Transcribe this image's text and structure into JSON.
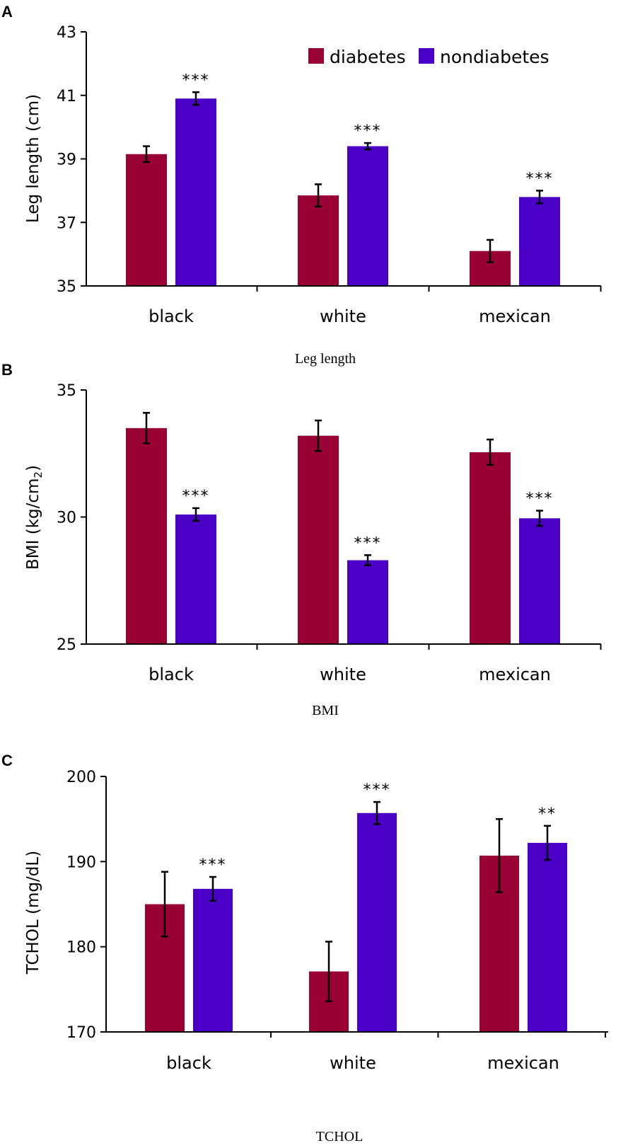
{
  "figure": {
    "colors": {
      "diabetes": "#990033",
      "nondiabetes": "#4B00C8"
    },
    "legend": [
      "diabetes",
      "nondiabetes"
    ]
  },
  "chart_data": [
    {
      "type": "bar",
      "panel": "A",
      "title": "",
      "caption": "Leg length",
      "xlabel": "",
      "ylabel": "Leg length (cm)",
      "ylim": [
        35,
        43
      ],
      "yticks": [
        "35",
        "37",
        "39",
        "41",
        "43"
      ],
      "categories": [
        "black",
        "white",
        "mexican"
      ],
      "legend": "top-right",
      "series": [
        {
          "name": "diabetes",
          "values": [
            39.15,
            37.85,
            36.1
          ],
          "errors": [
            0.25,
            0.35,
            0.35
          ]
        },
        {
          "name": "nondiabetes",
          "values": [
            40.9,
            39.4,
            37.8
          ],
          "errors": [
            0.2,
            0.1,
            0.2
          ]
        }
      ],
      "annotations": [
        {
          "category": "black",
          "series": "nondiabetes",
          "text": "***"
        },
        {
          "category": "white",
          "series": "nondiabetes",
          "text": "***"
        },
        {
          "category": "mexican",
          "series": "nondiabetes",
          "text": "***"
        }
      ]
    },
    {
      "type": "bar",
      "panel": "B",
      "title": "",
      "caption": "BMI",
      "xlabel": "",
      "ylabel": "BMI (kg/cm",
      "ylabel_sub": "2",
      "ylabel_end": ")",
      "ylim": [
        25,
        35
      ],
      "yticks": [
        "25",
        "30",
        "35"
      ],
      "categories": [
        "black",
        "white",
        "mexican"
      ],
      "series": [
        {
          "name": "diabetes",
          "values": [
            33.5,
            33.2,
            32.55
          ],
          "errors": [
            0.6,
            0.6,
            0.5
          ]
        },
        {
          "name": "nondiabetes",
          "values": [
            30.1,
            28.3,
            29.95
          ],
          "errors": [
            0.25,
            0.2,
            0.3
          ]
        }
      ],
      "annotations": [
        {
          "category": "black",
          "series": "nondiabetes",
          "text": "***"
        },
        {
          "category": "white",
          "series": "nondiabetes",
          "text": "***"
        },
        {
          "category": "mexican",
          "series": "nondiabetes",
          "text": "***"
        }
      ]
    },
    {
      "type": "bar",
      "panel": "C",
      "title": "",
      "caption": "TCHOL",
      "xlabel": "",
      "ylabel": "TCHOL (mg/dL)",
      "ylim": [
        170,
        200
      ],
      "yticks": [
        "170",
        "180",
        "190",
        "200"
      ],
      "categories": [
        "black",
        "white",
        "mexican"
      ],
      "series": [
        {
          "name": "diabetes",
          "values": [
            185.0,
            177.1,
            190.7
          ],
          "errors": [
            3.8,
            3.5,
            4.3
          ]
        },
        {
          "name": "nondiabetes",
          "values": [
            186.8,
            195.7,
            192.2
          ],
          "errors": [
            1.4,
            1.3,
            2.0
          ]
        }
      ],
      "annotations": [
        {
          "category": "black",
          "series": "nondiabetes",
          "text": "***"
        },
        {
          "category": "white",
          "series": "nondiabetes",
          "text": "***"
        },
        {
          "category": "mexican",
          "series": "nondiabetes",
          "text": "**"
        }
      ]
    }
  ]
}
